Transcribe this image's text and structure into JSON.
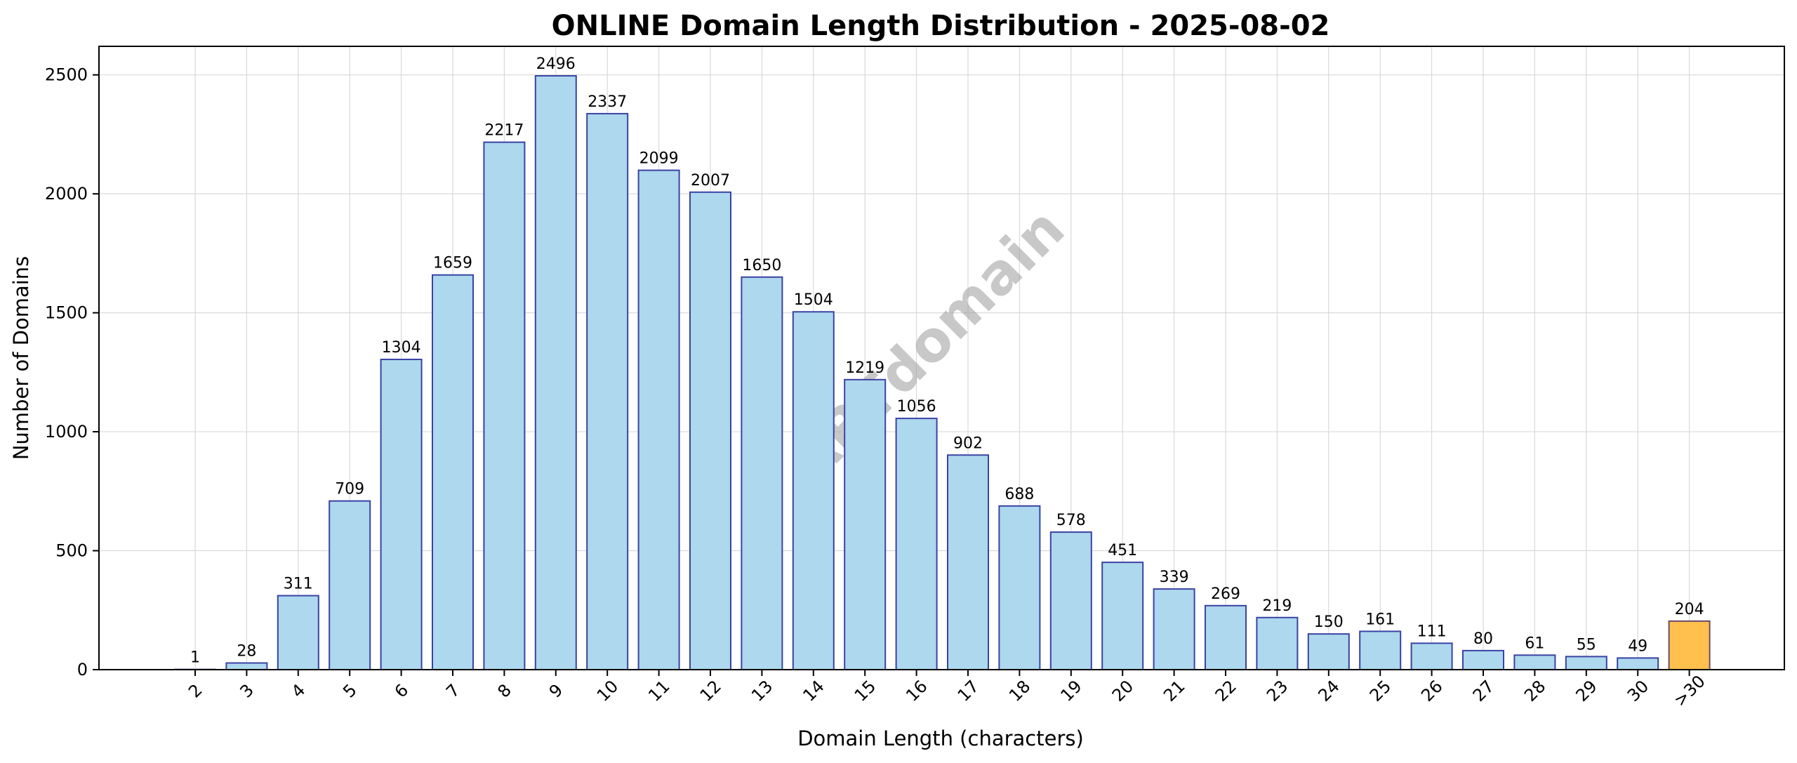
{
  "chart_data": {
    "type": "bar",
    "title": "ONLINE Domain Length Distribution - 2025-08-02",
    "xlabel": "Domain Length (characters)",
    "ylabel": "Number of Domains",
    "categories": [
      "2",
      "3",
      "4",
      "5",
      "6",
      "7",
      "8",
      "9",
      "10",
      "11",
      "12",
      "13",
      "14",
      "15",
      "16",
      "17",
      "18",
      "19",
      "20",
      "21",
      "22",
      "23",
      "24",
      "25",
      "26",
      "27",
      "28",
      "29",
      "30",
      ">30"
    ],
    "values": [
      1,
      28,
      311,
      709,
      1304,
      1659,
      2217,
      2496,
      2337,
      2099,
      2007,
      1650,
      1504,
      1219,
      1056,
      902,
      688,
      578,
      451,
      339,
      269,
      219,
      150,
      161,
      111,
      80,
      61,
      55,
      49,
      204
    ],
    "ylim": [
      0,
      2620
    ],
    "yticks": [
      0,
      500,
      1000,
      1500,
      2000,
      2500
    ],
    "grid": true,
    "colors": {
      "bar_fill": "#add8ed",
      "bar_stroke": "#3a43a4",
      "highlight_fill": "#ffc04d",
      "highlight_stroke": "#6b4a6b",
      "highlight_category": ">30"
    },
    "watermark": "ABTdomain"
  }
}
